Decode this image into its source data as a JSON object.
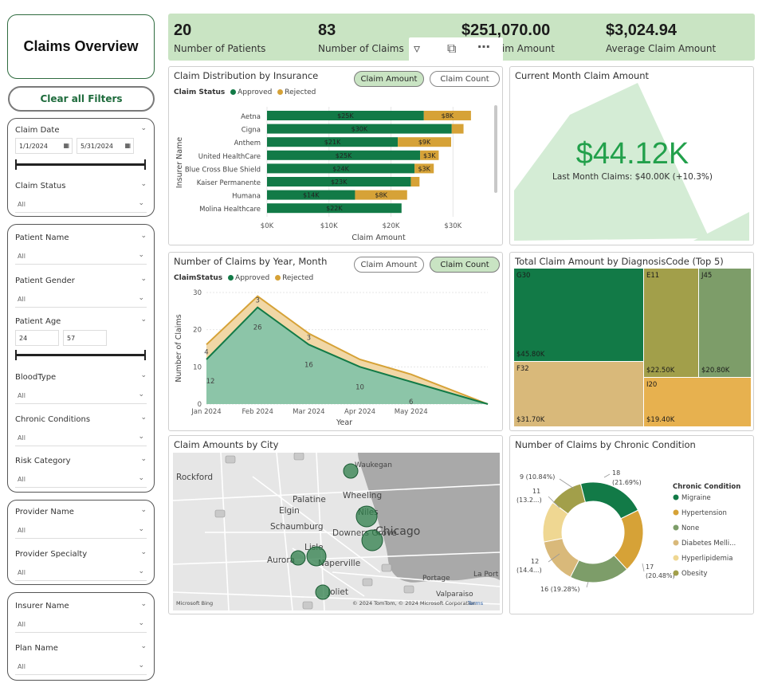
{
  "sidebar": {
    "title": "Claims Overview",
    "clear_filters": "Clear all Filters",
    "claim_date": {
      "label": "Claim Date",
      "start": "1/1/2024",
      "end": "5/31/2024"
    },
    "claim_status": {
      "label": "Claim Status",
      "value": "All"
    },
    "patient_name": {
      "label": "Patient Name",
      "value": "All"
    },
    "patient_gender": {
      "label": "Patient Gender",
      "value": "All"
    },
    "patient_age": {
      "label": "Patient Age",
      "min": "24",
      "max": "57"
    },
    "blood_type": {
      "label": "BloodType",
      "value": "All"
    },
    "chronic_conditions": {
      "label": "Chronic Conditions",
      "value": "All"
    },
    "risk_category": {
      "label": "Risk Category",
      "value": "All"
    },
    "provider_name": {
      "label": "Provider Name",
      "value": "All"
    },
    "provider_specialty": {
      "label": "Provider Specialty",
      "value": "All"
    },
    "insurer_name": {
      "label": "Insurer Name",
      "value": "All"
    },
    "plan_name": {
      "label": "Plan Name",
      "value": "All"
    }
  },
  "kpis": {
    "patients": {
      "value": "20",
      "label": "Number of Patients"
    },
    "claims": {
      "value": "83",
      "label": "Number of Claims"
    },
    "total": {
      "value": "$251,070.00",
      "label": "Total Claim Amount"
    },
    "average": {
      "value": "$3,024.94",
      "label": "Average Claim Amount"
    }
  },
  "insurance_panel": {
    "title": "Claim Distribution by Insurance",
    "toggle_amount": "Claim Amount",
    "toggle_count": "Claim Count",
    "legend_title": "Claim Status",
    "ylabel": "Insurer Name",
    "xlabel": "Claim Amount"
  },
  "current_month": {
    "title": "Current Month Claim Amount",
    "value": "$44.12K",
    "subtitle": "Last Month Claims: $40.00K (+10.3%)"
  },
  "claims_by_month": {
    "title": "Number of Claims by Year, Month",
    "toggle_amount": "Claim Amount",
    "toggle_count": "Claim Count",
    "legend_title": "ClaimStatus",
    "ylabel": "Number of Claims",
    "xlabel": "Year"
  },
  "treemap": {
    "title": "Total Claim Amount by DiagnosisCode (Top 5)",
    "items": [
      {
        "code": "G30",
        "value": "$45.80K",
        "color": "#127a47"
      },
      {
        "code": "E11",
        "value": "$22.50K",
        "color": "#a29f4a"
      },
      {
        "code": "J45",
        "value": "$20.80K",
        "color": "#7d9d69"
      },
      {
        "code": "F32",
        "value": "$31.70K",
        "color": "#d9b97a"
      },
      {
        "code": "I20",
        "value": "$19.40K",
        "color": "#e7b14f"
      }
    ]
  },
  "map": {
    "title": "Claim Amounts by City",
    "labels": [
      "Rockford",
      "Waukegan",
      "Palatine",
      "Wheeling",
      "Elgin",
      "Niles",
      "Schaumburg",
      "Chicago",
      "Downers Grove",
      "Lisle",
      "Aurora",
      "Naperville",
      "Joliet",
      "Portage",
      "La Port",
      "Valparaiso"
    ],
    "copyright": "© 2024 TomTom, © 2024 Microsoft Corporation",
    "terms": "Terms",
    "brand": "Microsoft Bing"
  },
  "chronic": {
    "title": "Number of Claims by Chronic Condition",
    "legend_title": "Chronic Condition",
    "slice_labels": [
      "18",
      "(21.69%)",
      "17",
      "(20.48%)",
      "16 (19.28%)",
      "12",
      "(14.4...)",
      "11",
      "(13.2...)",
      "9 (10.84%)"
    ]
  },
  "chart_data": [
    {
      "type": "bar",
      "title": "Claim Distribution by Insurance",
      "xlabel": "Claim Amount",
      "ylabel": "Insurer Name",
      "categories": [
        "Aetna",
        "Cigna",
        "Anthem",
        "United HealthCare",
        "Blue Cross Blue Shield",
        "Kaiser Permanente",
        "Humana",
        "Molina Healthcare"
      ],
      "series": [
        {
          "name": "Approved",
          "values": [
            25300,
            29800,
            21100,
            24700,
            23800,
            23200,
            14200,
            21700
          ],
          "labels": [
            "$25K",
            "$30K",
            "$21K",
            "$25K",
            "$24K",
            "$23K",
            "$14K",
            "$22K"
          ],
          "color": "#127a47"
        },
        {
          "name": "Rejected",
          "values": [
            7600,
            1900,
            8600,
            3000,
            3100,
            1400,
            8400,
            0
          ],
          "labels": [
            "$8K",
            "",
            "$9K",
            "$3K",
            "$3K",
            "",
            "$8K",
            ""
          ],
          "color": "#d6a237"
        }
      ],
      "xticks": [
        "$0K",
        "$10K",
        "$20K",
        "$30K"
      ],
      "xlim": [
        0,
        36000
      ]
    },
    {
      "type": "area",
      "title": "Number of Claims by Year, Month",
      "xlabel": "Year",
      "ylabel": "Number of Claims",
      "categories": [
        "Jan 2024",
        "Feb 2024",
        "Mar 2024",
        "Apr 2024",
        "May 2024"
      ],
      "series": [
        {
          "name": "Approved",
          "values": [
            12,
            26,
            16,
            10,
            6
          ],
          "color": "#127a47"
        },
        {
          "name": "Rejected",
          "values": [
            4,
            3,
            3,
            2,
            2
          ],
          "color": "#d6a237"
        }
      ],
      "yticks": [
        "0",
        "10",
        "20",
        "30"
      ],
      "ylim": [
        0,
        30
      ]
    },
    {
      "type": "pie",
      "title": "Number of Claims by Chronic Condition",
      "categories": [
        "Migraine",
        "Hypertension",
        "None",
        "Diabetes Melli...",
        "Hyperlipidemia",
        "Obesity"
      ],
      "values": [
        18,
        17,
        16,
        12,
        11,
        9
      ],
      "colors": [
        "#127a47",
        "#d6a237",
        "#7d9d69",
        "#d9b97a",
        "#efd792",
        "#a29f4a"
      ]
    }
  ]
}
